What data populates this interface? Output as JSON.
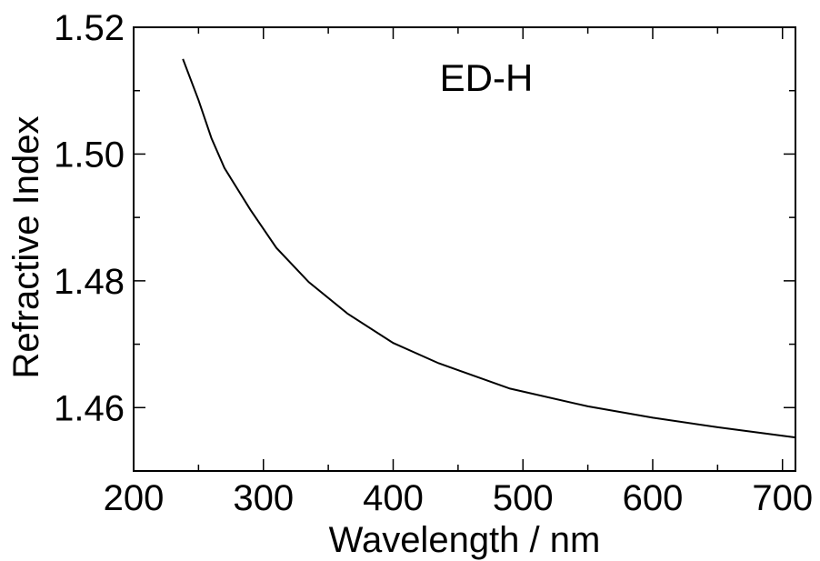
{
  "chart_data": {
    "type": "line",
    "annotation": "ED-H",
    "xlabel": "Wavelength / nm",
    "ylabel": "Refractive Index",
    "xlim": [
      200,
      710
    ],
    "ylim": [
      1.45,
      1.52
    ],
    "x_ticks": [
      200,
      300,
      400,
      500,
      600,
      700
    ],
    "x_tick_labels": [
      "200",
      "300",
      "400",
      "500",
      "600",
      "700"
    ],
    "y_ticks": [
      1.46,
      1.48,
      1.5,
      1.52
    ],
    "y_tick_labels": [
      "1.46",
      "1.48",
      "1.50",
      "1.52"
    ],
    "x_minor_step": 50,
    "y_minor_step": 0.01,
    "grid": false,
    "line_color": "#000000",
    "series": [
      {
        "x": [
          238,
          250,
          260,
          270,
          290,
          310,
          335,
          365,
          400,
          435,
          490,
          550,
          600,
          650,
          710
        ],
        "y": [
          1.515,
          1.5085,
          1.5025,
          1.4978,
          1.4912,
          1.4852,
          1.4798,
          1.4748,
          1.4702,
          1.467,
          1.463,
          1.4602,
          1.4584,
          1.4569,
          1.4553
        ]
      }
    ]
  }
}
